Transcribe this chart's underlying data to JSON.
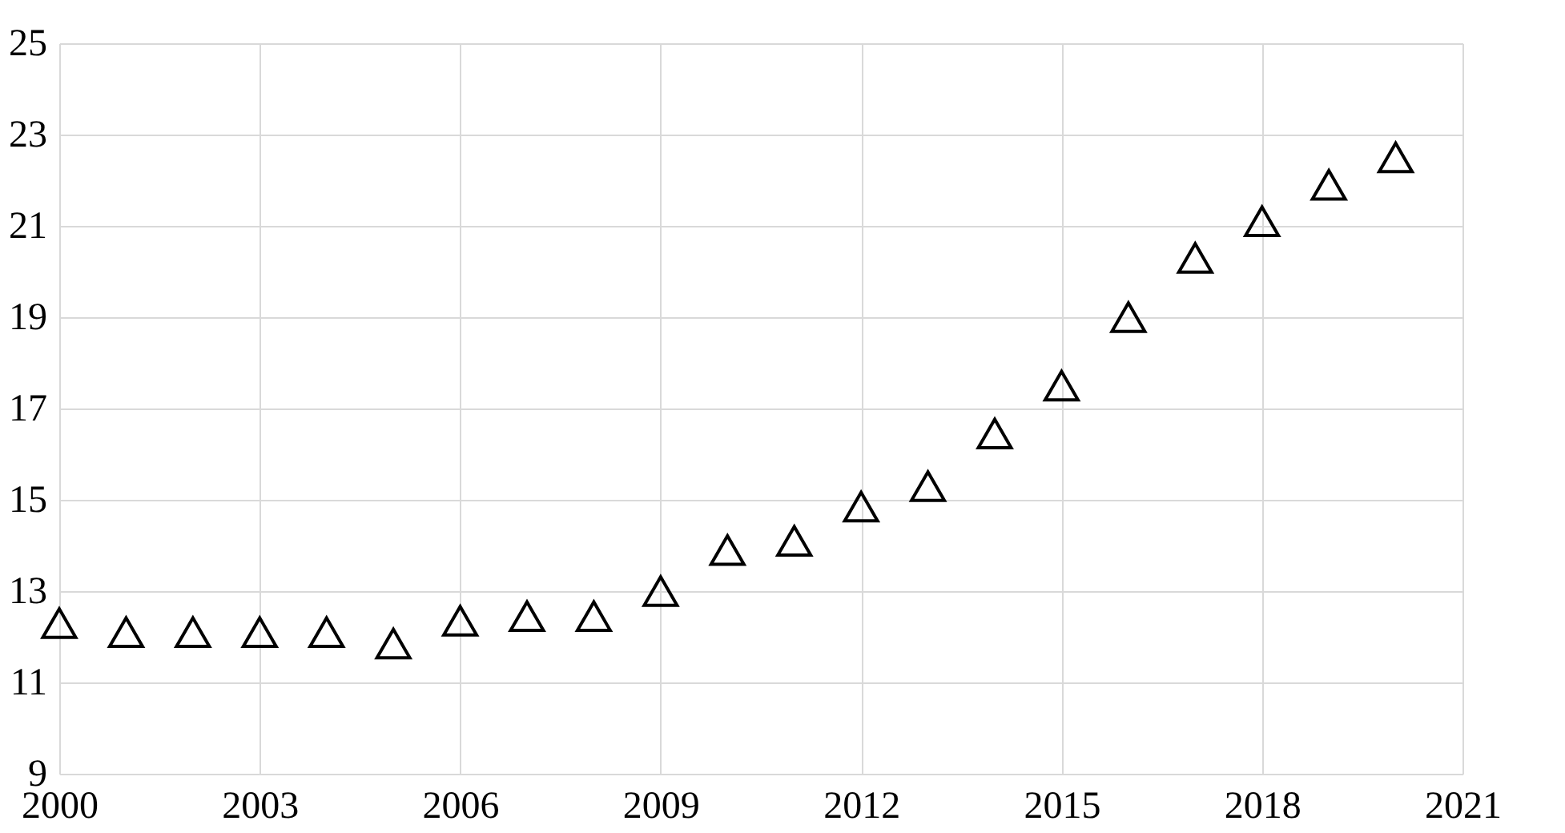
{
  "chart_data": {
    "type": "scatter",
    "x": [
      2000,
      2001,
      2002,
      2003,
      2004,
      2005,
      2006,
      2007,
      2008,
      2009,
      2010,
      2011,
      2012,
      2013,
      2014,
      2015,
      2016,
      2017,
      2018,
      2019,
      2020
    ],
    "series": [
      {
        "color": "#000000",
        "values": [
          12.3,
          12.1,
          12.1,
          12.1,
          12.1,
          11.85,
          12.35,
          12.45,
          12.45,
          13.0,
          13.9,
          14.1,
          14.85,
          15.3,
          16.45,
          17.5,
          19.0,
          20.3,
          21.1,
          21.9,
          22.5
        ]
      }
    ],
    "xlim": [
      2000,
      2021
    ],
    "xticks": [
      2000,
      2003,
      2006,
      2009,
      2012,
      2015,
      2018,
      2021
    ],
    "ylim": [
      9,
      25
    ],
    "yticks": [
      9,
      11,
      13,
      15,
      17,
      19,
      21,
      23,
      25
    ],
    "grid": true,
    "marker": "triangle"
  }
}
